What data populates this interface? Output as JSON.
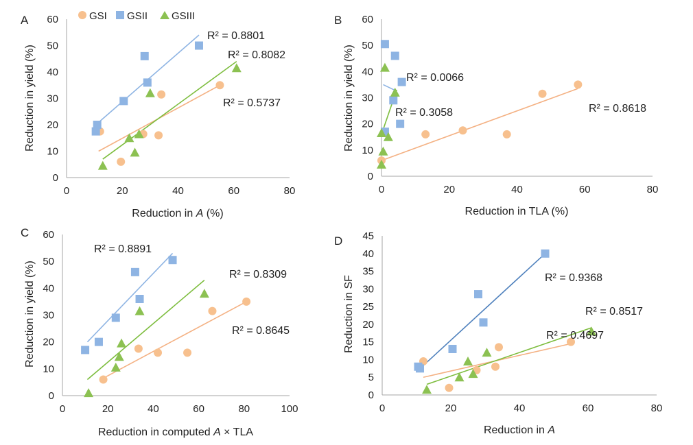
{
  "legend": [
    {
      "name": "GSI",
      "marker": "circle",
      "color": "#F7C08E"
    },
    {
      "name": "GSII",
      "marker": "square",
      "color": "#8EB4E3"
    },
    {
      "name": "GSIII",
      "marker": "triangle",
      "color": "#8CC152"
    }
  ],
  "colors": {
    "GSI": "#F7C08E",
    "GSII": "#8EB4E3",
    "GSIII": "#8CC152",
    "trend_GSI": "#F4B183",
    "trend_GSII": "#8EB4E3",
    "trend_GSIII": "#7DBD3E",
    "trend_GSII_D": "#4F81BD",
    "axis": "#A6A6A6"
  },
  "chart_data": [
    {
      "panel": "A",
      "type": "scatter",
      "xlabel_parts": [
        "Reduction in ",
        "A",
        " (%)"
      ],
      "ylabel": "Reduction in yield (%)",
      "xlim": [
        0,
        80
      ],
      "ylim": [
        0,
        60
      ],
      "xticks": [
        "0",
        "20",
        "40",
        "60",
        "80"
      ],
      "yticks": [
        "0",
        "10",
        "20",
        "30",
        "40",
        "50",
        "60"
      ],
      "series": [
        {
          "name": "GSI",
          "points": [
            [
              12,
              17.5
            ],
            [
              19.5,
              6
            ],
            [
              27.5,
              16.5
            ],
            [
              33,
              16
            ],
            [
              34,
              31.5
            ],
            [
              55,
              35
            ]
          ],
          "trend": [
            [
              11.5,
              10
            ],
            [
              55,
              35
            ]
          ],
          "r2": "R² = 0.5737"
        },
        {
          "name": "GSII",
          "points": [
            [
              10.5,
              17.5
            ],
            [
              11,
              20
            ],
            [
              20.5,
              29
            ],
            [
              28,
              46
            ],
            [
              29,
              36
            ],
            [
              47.5,
              50
            ]
          ],
          "trend": [
            [
              10.5,
              20
            ],
            [
              47.5,
              54
            ]
          ],
          "r2": "R² = 0.8801"
        },
        {
          "name": "GSIII",
          "points": [
            [
              13,
              4.5
            ],
            [
              22.5,
              15
            ],
            [
              24.5,
              9.5
            ],
            [
              26,
              16.5
            ],
            [
              30,
              32
            ],
            [
              61,
              41.5
            ]
          ],
          "trend": [
            [
              13,
              7
            ],
            [
              61,
              44
            ]
          ],
          "r2": "R² = 0.8082"
        }
      ]
    },
    {
      "panel": "B",
      "type": "scatter",
      "xlabel_parts": [
        "Reduction in TLA (%)"
      ],
      "ylabel": "Reduction in yield (%)",
      "xlim": [
        0,
        80
      ],
      "ylim": [
        0,
        60
      ],
      "xticks": [
        "0",
        "20",
        "40",
        "60",
        "80"
      ],
      "yticks": [
        "0",
        "10",
        "20",
        "30",
        "40",
        "50",
        "60"
      ],
      "series": [
        {
          "name": "GSI",
          "points": [
            [
              0,
              6
            ],
            [
              13,
              16
            ],
            [
              24,
              17.5
            ],
            [
              37,
              16
            ],
            [
              47.5,
              31.5
            ],
            [
              58,
              35
            ]
          ],
          "trend": [
            [
              0,
              6
            ],
            [
              58,
              33.5
            ]
          ],
          "r2": "R² = 0.8618"
        },
        {
          "name": "GSII",
          "points": [
            [
              1,
              17
            ],
            [
              1,
              50.5
            ],
            [
              3.5,
              29
            ],
            [
              4,
              46
            ],
            [
              5.5,
              20
            ],
            [
              6,
              36
            ]
          ],
          "trend": [
            [
              0.5,
              35
            ],
            [
              4.5,
              32.5
            ]
          ],
          "r2": "R² = 0.0066"
        },
        {
          "name": "GSIII",
          "points": [
            [
              0,
              4.5
            ],
            [
              0,
              16.5
            ],
            [
              0.5,
              9.5
            ],
            [
              1,
              41.5
            ],
            [
              2,
              15
            ],
            [
              4,
              32
            ]
          ],
          "trend": [
            [
              0,
              16
            ],
            [
              4.5,
              33
            ]
          ],
          "r2": "R² = 0.3058"
        }
      ]
    },
    {
      "panel": "C",
      "type": "scatter",
      "xlabel_parts": [
        "Reduction in computed ",
        "A",
        " × TLA"
      ],
      "ylabel": "Reduction in yield (%)",
      "xlim": [
        0,
        100
      ],
      "ylim": [
        0,
        60
      ],
      "xticks": [
        "0",
        "20",
        "40",
        "60",
        "80",
        "100"
      ],
      "yticks": [
        "0",
        "10",
        "20",
        "30",
        "40",
        "50",
        "60"
      ],
      "series": [
        {
          "name": "GSI",
          "points": [
            [
              18,
              6
            ],
            [
              33.5,
              17.5
            ],
            [
              42,
              16
            ],
            [
              55,
              16
            ],
            [
              66,
              31.5
            ],
            [
              81,
              35
            ]
          ],
          "trend": [
            [
              18,
              6.5
            ],
            [
              81,
              35
            ]
          ],
          "r2": "R² = 0.8645"
        },
        {
          "name": "GSII",
          "points": [
            [
              10,
              17
            ],
            [
              16,
              20
            ],
            [
              23.5,
              29
            ],
            [
              32,
              46
            ],
            [
              34,
              36
            ],
            [
              48.5,
              50.5
            ]
          ],
          "trend": [
            [
              11,
              20
            ],
            [
              48.5,
              53
            ]
          ],
          "r2": "R² = 0.8891"
        },
        {
          "name": "GSIII",
          "points": [
            [
              11.5,
              1
            ],
            [
              23.5,
              10.5
            ],
            [
              25,
              14.5
            ],
            [
              26,
              19.5
            ],
            [
              34,
              31.5
            ],
            [
              62.5,
              38
            ]
          ],
          "trend": [
            [
              11,
              6
            ],
            [
              62.5,
              43
            ]
          ],
          "r2": "R² = 0.8309"
        }
      ]
    },
    {
      "panel": "D",
      "type": "scatter",
      "xlabel_parts": [
        "Reduction in ",
        "A"
      ],
      "ylabel": "Reduction in SF",
      "xlim": [
        0,
        80
      ],
      "ylim": [
        0,
        45
      ],
      "xticks": [
        "0",
        "20",
        "40",
        "60",
        "80"
      ],
      "yticks": [
        "0",
        "5",
        "10",
        "15",
        "20",
        "25",
        "30",
        "35",
        "40",
        "45"
      ],
      "series": [
        {
          "name": "GSI",
          "points": [
            [
              12,
              9.5
            ],
            [
              19.5,
              2
            ],
            [
              27.5,
              7
            ],
            [
              33,
              8
            ],
            [
              34,
              13.5
            ],
            [
              55,
              15
            ]
          ],
          "trend": [
            [
              12,
              5
            ],
            [
              55,
              14.5
            ]
          ],
          "r2": "R² = 0.4697"
        },
        {
          "name": "GSII",
          "points": [
            [
              10.5,
              8
            ],
            [
              11,
              7.5
            ],
            [
              20.5,
              13
            ],
            [
              28,
              28.5
            ],
            [
              29.5,
              20.5
            ],
            [
              47.5,
              40
            ]
          ],
          "trend": [
            [
              10.5,
              7
            ],
            [
              47.5,
              40
            ]
          ],
          "r2": "R² = 0.9368"
        },
        {
          "name": "GSIII",
          "points": [
            [
              13,
              1.5
            ],
            [
              22.5,
              5
            ],
            [
              25,
              9.5
            ],
            [
              26.5,
              6
            ],
            [
              30.5,
              12
            ],
            [
              61,
              18
            ]
          ],
          "trend": [
            [
              13,
              3
            ],
            [
              61,
              19
            ]
          ],
          "r2": "R² = 0.8517"
        }
      ]
    }
  ]
}
